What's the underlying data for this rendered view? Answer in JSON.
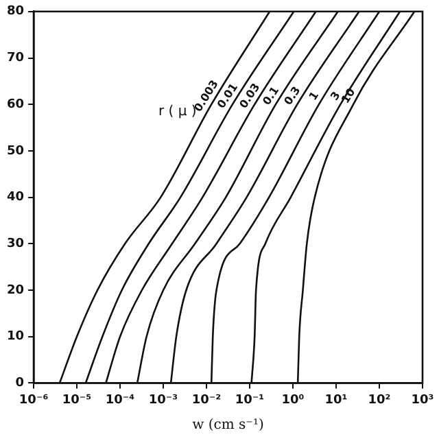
{
  "chart_data": {
    "type": "line",
    "xlabel": "w (cm s⁻¹)",
    "legend_title": "r ( μ )",
    "log": "x",
    "grid": false,
    "marker": "none",
    "line_style": "solid",
    "xlim": [
      1e-06,
      1000
    ],
    "ylim": [
      0,
      80
    ],
    "xticks": [
      {
        "value": 1e-06,
        "label": "10⁻⁶"
      },
      {
        "value": 1e-05,
        "label": "10⁻⁵"
      },
      {
        "value": 0.0001,
        "label": "10⁻⁴"
      },
      {
        "value": 0.001,
        "label": "10⁻³"
      },
      {
        "value": 0.01,
        "label": "10⁻²"
      },
      {
        "value": 0.1,
        "label": "10⁻¹"
      },
      {
        "value": 1,
        "label": "10⁰"
      },
      {
        "value": 10,
        "label": "10¹"
      },
      {
        "value": 100,
        "label": "10²"
      },
      {
        "value": 1000,
        "label": "10³"
      }
    ],
    "yticks": [
      0,
      10,
      20,
      30,
      40,
      50,
      60,
      70,
      80
    ],
    "series": [
      {
        "name": "0.003",
        "color": "#111111",
        "x": [
          4e-06,
          1e-05,
          3e-05,
          0.00013,
          0.00087,
          0.013,
          0.29
        ],
        "values": [
          0,
          10,
          20,
          30,
          40,
          60,
          80
        ]
      },
      {
        "name": "0.01",
        "color": "#111111",
        "x": [
          1.6e-05,
          3.9e-05,
          0.00011,
          0.00046,
          0.0025,
          0.04,
          1.05
        ],
        "values": [
          0,
          10,
          20,
          30,
          40,
          60,
          80
        ]
      },
      {
        "name": "0.03",
        "color": "#111111",
        "x": [
          4.7e-05,
          0.0001,
          0.00032,
          0.0016,
          0.0081,
          0.13,
          3.4
        ],
        "values": [
          0,
          10,
          20,
          30,
          40,
          60,
          80
        ]
      },
      {
        "name": "0.1",
        "color": "#111111",
        "x": [
          0.00025,
          0.00041,
          0.001,
          0.0054,
          0.028,
          0.4,
          11
        ],
        "values": [
          0,
          10,
          20,
          30,
          40,
          60,
          80
        ]
      },
      {
        "name": "0.3",
        "color": "#111111",
        "x": [
          0.0015,
          0.002,
          0.0034,
          0.017,
          0.085,
          1.26,
          34
        ],
        "values": [
          0,
          10,
          20,
          30,
          40,
          60,
          80
        ]
      },
      {
        "name": "1",
        "color": "#111111",
        "x": [
          0.013,
          0.014,
          0.017,
          0.059,
          0.28,
          4,
          100
        ],
        "values": [
          0,
          10,
          20,
          30,
          40,
          60,
          80
        ]
      },
      {
        "name": "3",
        "color": "#111111",
        "x": [
          0.11,
          0.13,
          0.14,
          0.23,
          0.89,
          12.6,
          300
        ],
        "values": [
          0,
          10,
          20,
          30,
          40,
          60,
          80
        ]
      },
      {
        "name": "10",
        "color": "#111111",
        "x": [
          1.3,
          1.4,
          1.7,
          2.1,
          3.2,
          25,
          650
        ],
        "values": [
          0,
          10,
          20,
          30,
          40,
          60,
          80
        ]
      }
    ]
  }
}
